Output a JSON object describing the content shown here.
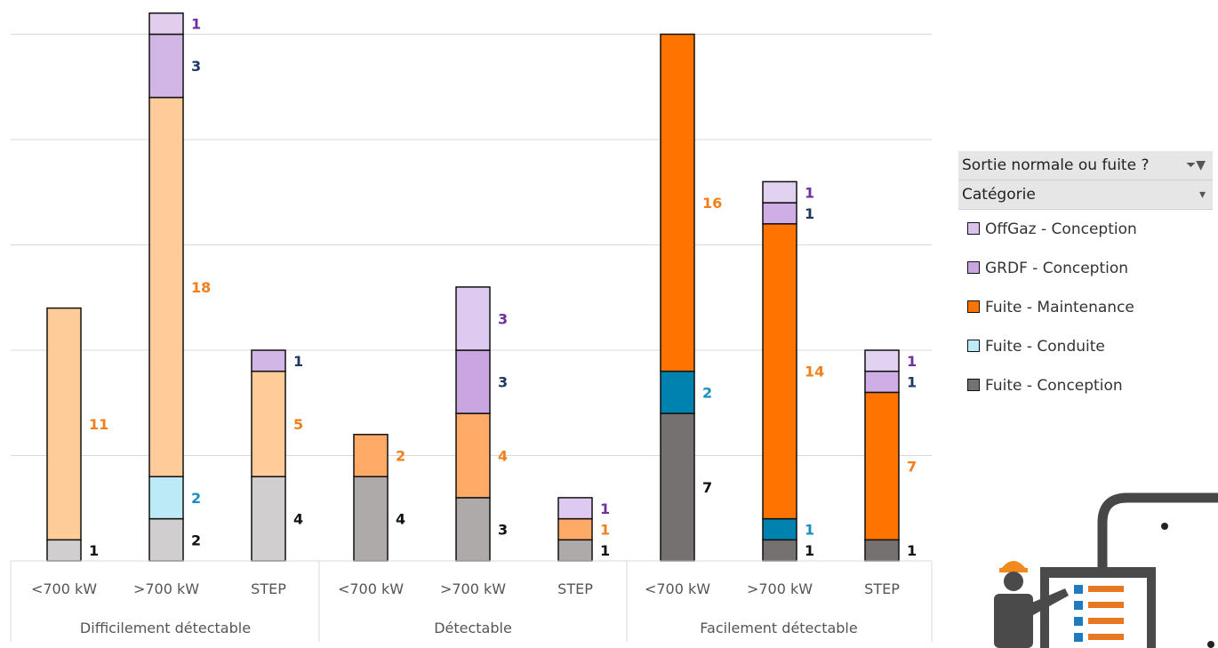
{
  "chart_data": {
    "type": "bar",
    "stacked": true,
    "ylim": [
      0,
      25
    ],
    "grid": true,
    "groups": [
      "Difficilement détectable",
      "Détectable",
      "Facilement détectable"
    ],
    "categories": [
      "<700 kW",
      ">700 kW",
      "STEP",
      "<700 kW",
      ">700 kW",
      "STEP",
      "<700 kW",
      ">700 kW",
      "STEP"
    ],
    "series": [
      {
        "name": "Fuite - Conception",
        "values": [
          1,
          2,
          4,
          4,
          3,
          1,
          7,
          1,
          1
        ]
      },
      {
        "name": "Fuite - Conduite",
        "values": [
          0,
          2,
          0,
          0,
          0,
          0,
          2,
          1,
          0
        ]
      },
      {
        "name": "Fuite - Maintenance",
        "values": [
          11,
          18,
          5,
          2,
          4,
          1,
          16,
          14,
          7
        ]
      },
      {
        "name": "GRDF - Conception",
        "values": [
          0,
          3,
          1,
          0,
          3,
          0,
          0,
          1,
          1
        ]
      },
      {
        "name": "OffGaz - Conception",
        "values": [
          0,
          1,
          0,
          0,
          3,
          1,
          0,
          1,
          1
        ]
      }
    ],
    "bar_colors": [
      [
        "#d0cece",
        "#bdeaf7",
        "#ffcc99",
        "#d2b6e6",
        "#e3cdef"
      ],
      [
        "#aeaaaa",
        "#9fdcf0",
        "#ffaa66",
        "#c9a6e2",
        "#decaf0"
      ],
      [
        "#767171",
        "#0082b0",
        "#ff7300",
        "#cfaee6",
        "#e2d2f2"
      ]
    ],
    "label_colors": [
      "#111111",
      "#1a8fbf",
      "#f07f1c",
      "#1f3864",
      "#7030a0"
    ],
    "legend": {
      "filter_label": "Sortie normale ou fuite ?",
      "category_label": "Catégorie",
      "filter_icon": "filter-icon",
      "dropdown_icon": "dropdown-arrow-icon",
      "items": [
        {
          "label": "OffGaz - Conception",
          "color": "#d9c3ec"
        },
        {
          "label": "GRDF - Conception",
          "color": "#c9a6e2"
        },
        {
          "label": "Fuite - Maintenance",
          "color": "#ff7300"
        },
        {
          "label": "Fuite - Conduite",
          "color": "#bdeaf7"
        },
        {
          "label": "Fuite - Conception",
          "color": "#767171"
        }
      ]
    }
  },
  "decor": {
    "icon": "worker-presentation-icon"
  }
}
